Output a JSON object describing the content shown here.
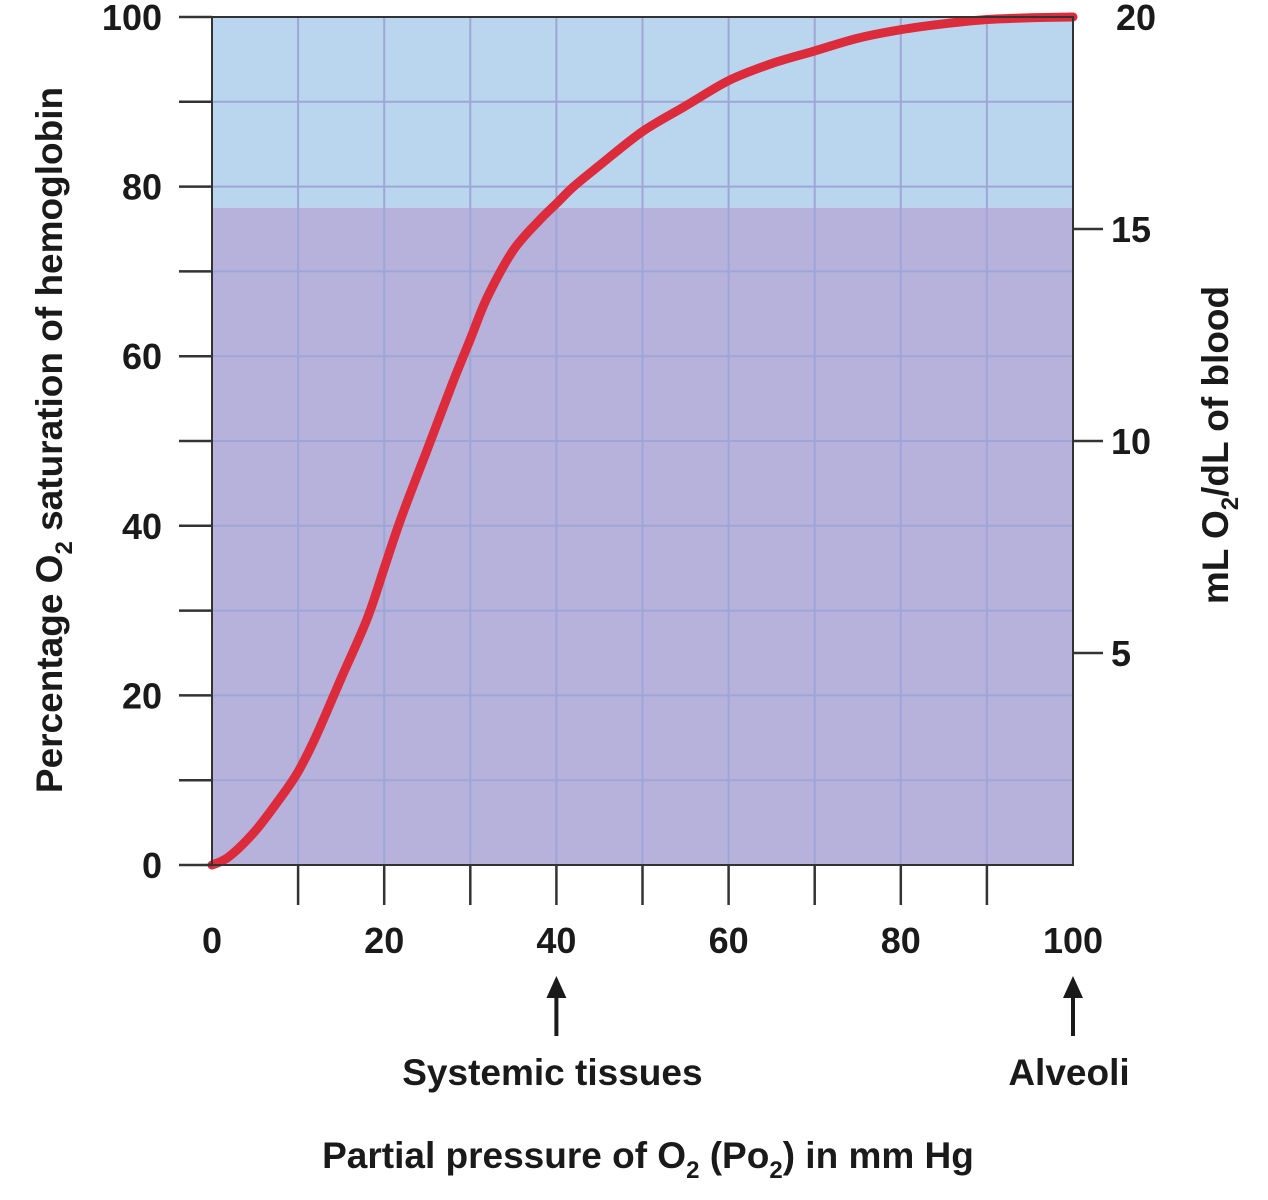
{
  "chart_data": {
    "type": "line",
    "title": "",
    "xlabel": {
      "pre": "Partial pressure of O",
      "sub1": "2",
      "mid": " (Po",
      "sub2": "2",
      "post": ") in mm Hg"
    },
    "ylabel_left": {
      "pre": "Percentage O",
      "sub": "2",
      "post": " saturation of hemoglobin"
    },
    "ylabel_right": {
      "pre": "mL O",
      "sub": "2",
      "post": "/dL of blood"
    },
    "xlim": [
      0,
      100
    ],
    "ylim": [
      0,
      100
    ],
    "y2lim": [
      0,
      20
    ],
    "x_ticks": [
      0,
      20,
      40,
      60,
      80,
      100
    ],
    "x_tick_labels": [
      "0",
      "20",
      "40",
      "60",
      "80",
      "100"
    ],
    "x_minor_ticks": [
      10,
      30,
      50,
      70,
      90
    ],
    "y_ticks": [
      0,
      20,
      40,
      60,
      80,
      100
    ],
    "y_tick_labels": [
      "0",
      "20",
      "40",
      "60",
      "80",
      "100"
    ],
    "y_minor_ticks": [
      10,
      30,
      50,
      70,
      90
    ],
    "y2_ticks": [
      5,
      10,
      15
    ],
    "y2_tick_labels": [
      "5",
      "10",
      "15"
    ],
    "y2_top_label": "20",
    "grid": true,
    "regions": [
      {
        "y_from": 77.5,
        "y_to": 100,
        "color": "#bad6ee"
      },
      {
        "y_from": 0,
        "y_to": 77.5,
        "color": "#b6b2dc"
      }
    ],
    "grid_color": "#9da6d6",
    "line_color": "#dc2b3b",
    "series": [
      {
        "x": [
          0,
          2,
          5,
          8,
          10,
          12,
          15,
          18,
          20,
          22,
          25,
          28,
          30,
          32,
          35,
          38,
          40,
          42,
          45,
          50,
          55,
          60,
          65,
          70,
          75,
          80,
          85,
          90,
          95,
          100
        ],
        "values": [
          0,
          1,
          4,
          8,
          11,
          15,
          22,
          29,
          35,
          41,
          49,
          57,
          62,
          67,
          72.5,
          76,
          78,
          80,
          82.5,
          86.5,
          89.5,
          92.5,
          94.5,
          96,
          97.5,
          98.5,
          99.2,
          99.7,
          99.9,
          100
        ]
      }
    ],
    "annotations": [
      {
        "text": "Systemic tissues",
        "x": 40
      },
      {
        "text": "Alveoli",
        "x": 100
      }
    ]
  }
}
